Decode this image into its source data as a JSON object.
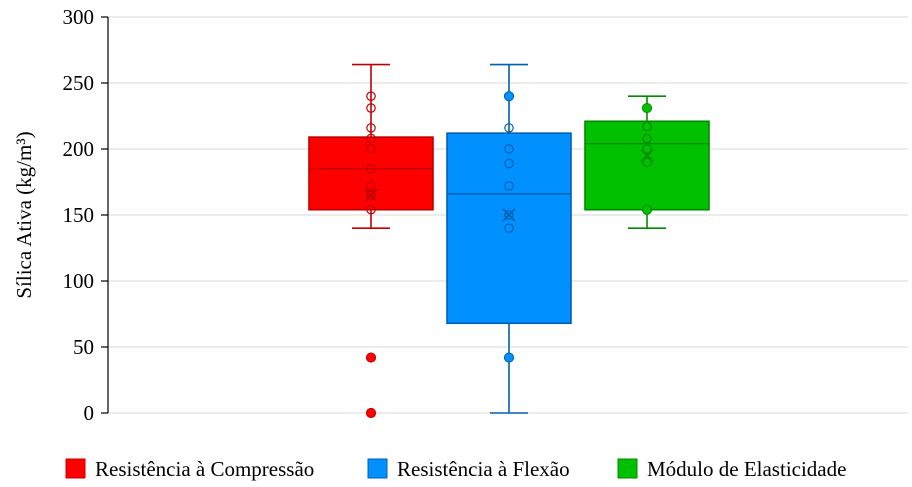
{
  "chart_data": {
    "type": "box",
    "title": "",
    "xlabel": "",
    "ylabel": "Sílica Ativa (kg/m³)",
    "ylim": [
      0,
      300
    ],
    "yticks": [
      0,
      50,
      100,
      150,
      200,
      250,
      300
    ],
    "grid": true,
    "legend_position": "bottom",
    "series": [
      {
        "name": "Resistência à Compressão",
        "color": "#ff0000",
        "stroke": "#c00000",
        "whisker_low": 140,
        "q1": 154,
        "median": 185,
        "q3": 209,
        "whisker_high": 264,
        "mean": 165,
        "outliers": [
          42,
          0
        ],
        "points": [
          240,
          231,
          216,
          208,
          200,
          185,
          172,
          165,
          154
        ]
      },
      {
        "name": "Resistência à Flexão",
        "color": "#0090ff",
        "stroke": "#0060b0",
        "whisker_low": 0,
        "q1": 68,
        "median": 166,
        "q3": 212,
        "whisker_high": 264,
        "mean": 150,
        "outliers": [
          240,
          42
        ],
        "points": [
          216,
          200,
          189,
          172,
          150,
          140
        ]
      },
      {
        "name": "Módulo de Elasticidade",
        "color": "#00c000",
        "stroke": "#008a00",
        "whisker_low": 140,
        "q1": 154,
        "median": 204,
        "q3": 221,
        "whisker_high": 240,
        "mean": 195,
        "outliers": [
          231,
          154
        ],
        "points": [
          217,
          208,
          200,
          190
        ]
      }
    ]
  }
}
